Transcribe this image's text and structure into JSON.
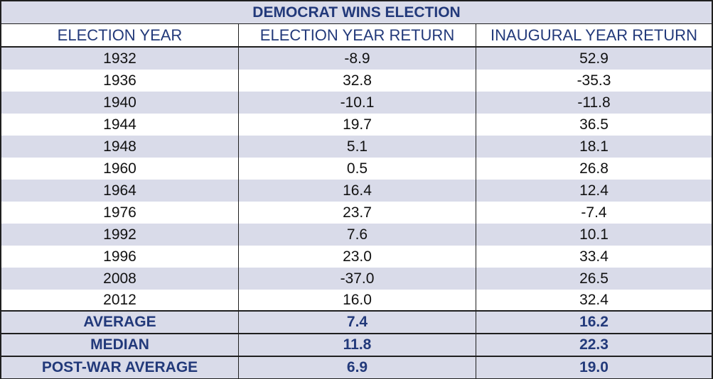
{
  "chart_data": {
    "type": "table",
    "title": "DEMOCRAT WINS ELECTION",
    "columns": [
      "ELECTION YEAR",
      "ELECTION YEAR RETURN",
      "INAUGURAL YEAR RETURN"
    ],
    "rows": [
      [
        "1932",
        "-8.9",
        "52.9"
      ],
      [
        "1936",
        "32.8",
        "-35.3"
      ],
      [
        "1940",
        "-10.1",
        "-11.8"
      ],
      [
        "1944",
        "19.7",
        "36.5"
      ],
      [
        "1948",
        "5.1",
        "18.1"
      ],
      [
        "1960",
        "0.5",
        "26.8"
      ],
      [
        "1964",
        "16.4",
        "12.4"
      ],
      [
        "1976",
        "23.7",
        "-7.4"
      ],
      [
        "1992",
        "7.6",
        "10.1"
      ],
      [
        "1996",
        "23.0",
        "33.4"
      ],
      [
        "2008",
        "-37.0",
        "26.5"
      ],
      [
        "2012",
        "16.0",
        "32.4"
      ]
    ],
    "summary": [
      [
        "AVERAGE",
        "7.4",
        "16.2"
      ],
      [
        "MEDIAN",
        "11.8",
        "22.3"
      ],
      [
        "POST-WAR AVERAGE",
        "6.9",
        "19.0"
      ]
    ]
  },
  "colors": {
    "band": "#d9dbe9",
    "accent_text": "#22397a",
    "border": "#1f1f1f"
  }
}
